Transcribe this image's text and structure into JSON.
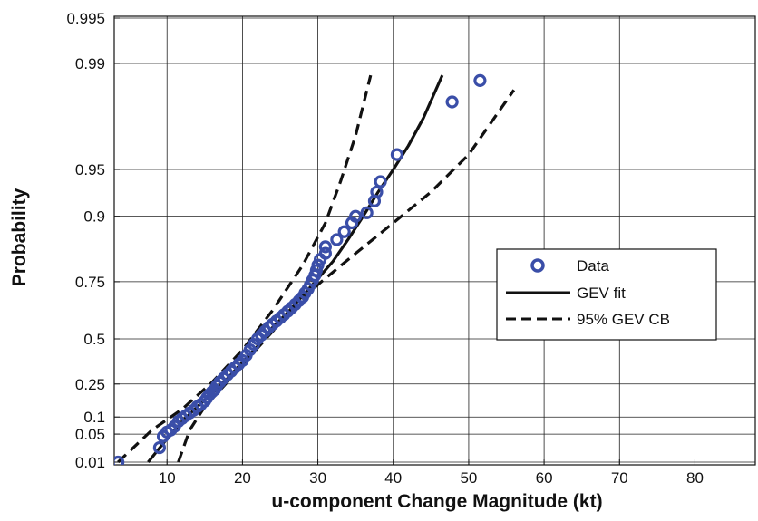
{
  "chart_data": {
    "type": "scatter",
    "title": "",
    "xlabel": "u-component Change Magnitude (kt)",
    "ylabel": "Probability",
    "xlim": [
      3,
      88
    ],
    "x_ticks": [
      10,
      20,
      30,
      40,
      50,
      60,
      70,
      80
    ],
    "x_tick_labels": [
      "10",
      "20",
      "30",
      "40",
      "50",
      "60",
      "70",
      "80"
    ],
    "y_scale": "gev-probability",
    "y_ticks": [
      0.01,
      0.05,
      0.1,
      0.25,
      0.5,
      0.75,
      0.9,
      0.95,
      0.99,
      0.995
    ],
    "y_tick_labels": [
      "0.01",
      "0.05",
      "0.1",
      "0.25",
      "0.5",
      "0.75",
      "0.9",
      "0.95",
      "0.99",
      "0.995"
    ],
    "grid": true,
    "legend_position": "right",
    "legend": [
      "Data",
      "GEV fit",
      "95% GEV CB"
    ],
    "colors": {
      "data": "#3a4ea8",
      "fit": "#111111",
      "bounds": "#111111"
    },
    "series": [
      {
        "name": "Data",
        "kind": "points",
        "x": [
          3.5,
          9,
          9.5,
          10,
          10.5,
          11,
          11.5,
          12,
          12.5,
          13,
          13.5,
          14,
          14.5,
          15,
          15.3,
          15.6,
          16,
          16.3,
          16.6,
          17,
          17.5,
          18,
          18.5,
          19,
          19.5,
          20,
          20.5,
          21,
          21.5,
          22,
          22.5,
          23,
          23.5,
          24,
          24.5,
          25,
          25.5,
          26,
          26.5,
          27,
          27.5,
          28,
          28.3,
          28.7,
          29,
          29.3,
          29.6,
          29.8,
          30,
          30.3,
          31,
          31,
          32.5,
          33.5,
          34.5,
          35,
          36.5,
          37.5,
          37.8,
          38.3,
          40.5,
          47.8,
          51.5
        ],
        "y": [
          0.01,
          0.025,
          0.045,
          0.055,
          0.06,
          0.07,
          0.085,
          0.095,
          0.105,
          0.115,
          0.125,
          0.14,
          0.15,
          0.165,
          0.18,
          0.195,
          0.21,
          0.22,
          0.24,
          0.26,
          0.28,
          0.3,
          0.32,
          0.34,
          0.36,
          0.38,
          0.41,
          0.44,
          0.47,
          0.5,
          0.52,
          0.54,
          0.56,
          0.575,
          0.59,
          0.605,
          0.62,
          0.635,
          0.65,
          0.665,
          0.68,
          0.695,
          0.71,
          0.725,
          0.74,
          0.755,
          0.77,
          0.785,
          0.8,
          0.815,
          0.83,
          0.845,
          0.86,
          0.875,
          0.89,
          0.9,
          0.905,
          0.92,
          0.93,
          0.94,
          0.96,
          0.982,
          0.987
        ]
      },
      {
        "name": "GEV fit",
        "kind": "line",
        "x": [
          7.5,
          10,
          12,
          14,
          16,
          18,
          20,
          22,
          24,
          26,
          28,
          30,
          32,
          34,
          36,
          38,
          40,
          42,
          44,
          46.5
        ],
        "y": [
          0.01,
          0.04,
          0.085,
          0.14,
          0.2,
          0.28,
          0.37,
          0.46,
          0.56,
          0.63,
          0.7,
          0.76,
          0.81,
          0.86,
          0.9,
          0.93,
          0.95,
          0.965,
          0.977,
          0.988
        ]
      },
      {
        "name": "95% GEV CB",
        "kind": "line",
        "style": "dashed",
        "x": [
          3.5,
          8,
          12,
          16,
          20,
          24,
          28,
          31,
          33,
          35,
          37
        ],
        "y": [
          0.01,
          0.06,
          0.13,
          0.26,
          0.44,
          0.64,
          0.8,
          0.89,
          0.94,
          0.97,
          0.988
        ]
      },
      {
        "name": "95% GEV CB",
        "kind": "line",
        "style": "dashed",
        "x": [
          11.5,
          13,
          15,
          18,
          22,
          26,
          30,
          35,
          40,
          45,
          50,
          56
        ],
        "y": [
          0.01,
          0.06,
          0.14,
          0.26,
          0.45,
          0.62,
          0.74,
          0.83,
          0.89,
          0.93,
          0.96,
          0.985
        ]
      }
    ]
  }
}
